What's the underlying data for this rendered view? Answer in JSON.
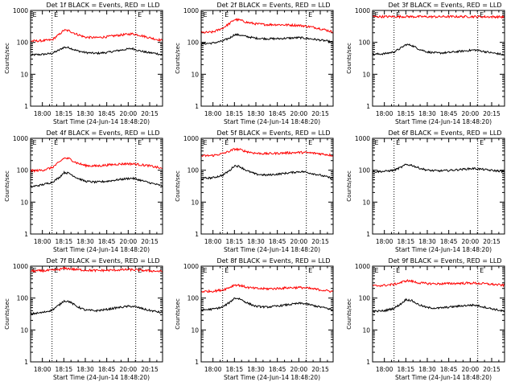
{
  "figure": {
    "background": "#ffffff",
    "axis_color": "#000000",
    "events_color": "#000000",
    "lld_color": "#ff0000"
  },
  "chart_data": [
    {
      "type": "line",
      "title": "Det 1f BLACK = Events, RED = LLD",
      "xlabel": "Start Time (24-Jun-14 18:48:20)",
      "ylabel": "Counts/sec",
      "yscale": "log",
      "ylim": [
        1,
        1000
      ],
      "y_ticks": [
        "1",
        "10",
        "100",
        "1000"
      ],
      "x_ticks": [
        "18:00",
        "18:15",
        "18:30",
        "18:45",
        "20:00",
        "20:15"
      ],
      "x_tick_positions": [
        0.0,
        1.0,
        2.0,
        3.0,
        4.0,
        5.0
      ],
      "xlim": [
        -0.55,
        5.6
      ],
      "e_markers": [
        0.45,
        4.35
      ],
      "grid": false,
      "series": [
        {
          "name": "Events",
          "color": "#000000",
          "x": [
            -0.55,
            0.0,
            0.45,
            0.8,
            1.0,
            1.25,
            1.6,
            2.0,
            2.5,
            3.0,
            3.5,
            4.0,
            4.2,
            4.5,
            4.9,
            5.3,
            5.6
          ],
          "y": [
            40,
            42,
            45,
            58,
            70,
            68,
            55,
            48,
            45,
            48,
            55,
            62,
            64,
            55,
            48,
            45,
            40
          ]
        },
        {
          "name": "LLD",
          "color": "#ff0000",
          "x": [
            -0.55,
            0.0,
            0.45,
            0.8,
            1.0,
            1.25,
            1.6,
            2.0,
            2.5,
            3.0,
            3.5,
            4.0,
            4.2,
            4.5,
            4.9,
            5.3,
            5.6
          ],
          "y": [
            110,
            112,
            120,
            180,
            240,
            230,
            180,
            145,
            140,
            150,
            165,
            180,
            185,
            170,
            145,
            125,
            115
          ]
        }
      ]
    },
    {
      "type": "line",
      "title": "Det 2f BLACK = Events, RED = LLD",
      "xlabel": "Start Time (24-Jun-14 18:48:20)",
      "ylabel": "Counts/sec",
      "yscale": "log",
      "ylim": [
        1,
        1000
      ],
      "y_ticks": [
        "1",
        "10",
        "100",
        "1000"
      ],
      "x_ticks": [
        "18:00",
        "18:15",
        "18:30",
        "18:45",
        "20:00",
        "20:15"
      ],
      "x_tick_positions": [
        0.0,
        1.0,
        2.0,
        3.0,
        4.0,
        5.0
      ],
      "xlim": [
        -0.55,
        5.6
      ],
      "e_markers": [
        0.45,
        4.35
      ],
      "grid": false,
      "series": [
        {
          "name": "Events",
          "color": "#000000",
          "x": [
            -0.55,
            0.0,
            0.45,
            0.8,
            1.0,
            1.25,
            1.6,
            2.0,
            2.5,
            3.0,
            3.5,
            4.0,
            4.2,
            4.5,
            4.9,
            5.3,
            5.6
          ],
          "y": [
            90,
            95,
            110,
            140,
            175,
            170,
            150,
            135,
            130,
            130,
            135,
            140,
            138,
            130,
            120,
            110,
            100
          ]
        },
        {
          "name": "LLD",
          "color": "#ff0000",
          "x": [
            -0.55,
            0.0,
            0.45,
            0.8,
            1.0,
            1.25,
            1.6,
            2.0,
            2.5,
            3.0,
            3.5,
            4.0,
            4.2,
            4.5,
            4.9,
            5.3,
            5.6
          ],
          "y": [
            200,
            210,
            280,
            400,
            520,
            500,
            420,
            380,
            360,
            360,
            350,
            340,
            330,
            310,
            280,
            240,
            210
          ]
        }
      ]
    },
    {
      "type": "line",
      "title": "Det 3f BLACK = Events, RED = LLD",
      "xlabel": "Start Time (24-Jun-14 18:48:20)",
      "ylabel": "Counts/sec",
      "yscale": "log",
      "ylim": [
        1,
        1000
      ],
      "y_ticks": [
        "1",
        "10",
        "100",
        "1000"
      ],
      "x_ticks": [
        "18:00",
        "18:15",
        "18:30",
        "18:45",
        "20:00",
        "20:15"
      ],
      "x_tick_positions": [
        0.0,
        1.0,
        2.0,
        3.0,
        4.0,
        5.0
      ],
      "xlim": [
        -0.55,
        5.6
      ],
      "e_markers": [
        0.45,
        4.35
      ],
      "grid": false,
      "series": [
        {
          "name": "Events",
          "color": "#000000",
          "x": [
            -0.55,
            0.0,
            0.45,
            0.8,
            1.0,
            1.25,
            1.6,
            2.0,
            2.5,
            3.0,
            3.5,
            4.0,
            4.2,
            4.5,
            4.9,
            5.3,
            5.6
          ],
          "y": [
            42,
            44,
            50,
            68,
            85,
            82,
            62,
            50,
            46,
            48,
            52,
            56,
            58,
            54,
            48,
            44,
            40
          ]
        },
        {
          "name": "LLD",
          "color": "#ff0000",
          "x": [
            -0.55,
            0.0,
            0.45,
            0.8,
            1.0,
            1.25,
            1.6,
            2.0,
            2.5,
            3.0,
            3.5,
            4.0,
            4.2,
            4.5,
            4.9,
            5.3,
            5.6
          ],
          "y": [
            640,
            640,
            640,
            640,
            645,
            640,
            640,
            635,
            635,
            640,
            640,
            640,
            640,
            635,
            630,
            630,
            625
          ]
        }
      ]
    },
    {
      "type": "line",
      "title": "Det 4f BLACK = Events, RED = LLD",
      "xlabel": "Start Time (24-Jun-14 18:48:20)",
      "ylabel": "Counts/sec",
      "yscale": "log",
      "ylim": [
        1,
        1000
      ],
      "y_ticks": [
        "1",
        "10",
        "100",
        "1000"
      ],
      "x_ticks": [
        "18:00",
        "18:15",
        "18:30",
        "18:45",
        "20:00",
        "20:15"
      ],
      "x_tick_positions": [
        0.0,
        1.0,
        2.0,
        3.0,
        4.0,
        5.0
      ],
      "xlim": [
        -0.55,
        5.6
      ],
      "e_markers": [
        0.45,
        4.35
      ],
      "grid": false,
      "series": [
        {
          "name": "Events",
          "color": "#000000",
          "x": [
            -0.55,
            0.0,
            0.45,
            0.8,
            1.0,
            1.25,
            1.6,
            2.0,
            2.5,
            3.0,
            3.5,
            4.0,
            4.2,
            4.5,
            4.9,
            5.3,
            5.6
          ],
          "y": [
            30,
            35,
            42,
            60,
            85,
            80,
            58,
            45,
            42,
            45,
            50,
            55,
            56,
            50,
            42,
            36,
            32
          ]
        },
        {
          "name": "LLD",
          "color": "#ff0000",
          "x": [
            -0.55,
            0.0,
            0.45,
            0.8,
            1.0,
            1.25,
            1.6,
            2.0,
            2.5,
            3.0,
            3.5,
            4.0,
            4.2,
            4.5,
            4.9,
            5.3,
            5.6
          ],
          "y": [
            95,
            100,
            120,
            180,
            240,
            230,
            170,
            140,
            135,
            145,
            155,
            160,
            158,
            150,
            140,
            125,
            110
          ]
        }
      ]
    },
    {
      "type": "line",
      "title": "Det 5f BLACK = Events, RED = LLD",
      "xlabel": "Start Time (24-Jun-14 18:48:20)",
      "ylabel": "Counts/sec",
      "yscale": "log",
      "ylim": [
        1,
        1000
      ],
      "y_ticks": [
        "1",
        "10",
        "100",
        "1000"
      ],
      "x_ticks": [
        "18:00",
        "18:15",
        "18:30",
        "18:45",
        "20:00",
        "20:15"
      ],
      "x_tick_positions": [
        0.0,
        1.0,
        2.0,
        3.0,
        4.0,
        5.0
      ],
      "xlim": [
        -0.55,
        5.6
      ],
      "e_markers": [
        0.45,
        4.35
      ],
      "grid": false,
      "series": [
        {
          "name": "Events",
          "color": "#000000",
          "x": [
            -0.55,
            0.0,
            0.45,
            0.8,
            1.0,
            1.25,
            1.6,
            2.0,
            2.5,
            3.0,
            3.5,
            4.0,
            4.2,
            4.5,
            4.9,
            5.3,
            5.6
          ],
          "y": [
            55,
            58,
            70,
            100,
            140,
            130,
            95,
            75,
            70,
            75,
            82,
            90,
            90,
            82,
            72,
            62,
            55
          ]
        },
        {
          "name": "LLD",
          "color": "#ff0000",
          "x": [
            -0.55,
            0.0,
            0.45,
            0.8,
            1.0,
            1.25,
            1.6,
            2.0,
            2.5,
            3.0,
            3.5,
            4.0,
            4.2,
            4.5,
            4.9,
            5.3,
            5.6
          ],
          "y": [
            280,
            290,
            330,
            400,
            460,
            440,
            380,
            340,
            330,
            340,
            350,
            360,
            360,
            350,
            335,
            310,
            290
          ]
        }
      ]
    },
    {
      "type": "line",
      "title": "Det 6f BLACK = Events, RED = LLD",
      "xlabel": "Start Time (24-Jun-14 18:48:20)",
      "ylabel": "Counts/sec",
      "yscale": "log",
      "ylim": [
        1,
        1000
      ],
      "y_ticks": [
        "1",
        "10",
        "100",
        "1000"
      ],
      "x_ticks": [
        "18:00",
        "18:15",
        "18:30",
        "18:45",
        "20:00",
        "20:15"
      ],
      "x_tick_positions": [
        0.0,
        1.0,
        2.0,
        3.0,
        4.0,
        5.0
      ],
      "xlim": [
        -0.55,
        5.6
      ],
      "e_markers": [
        0.45,
        4.35
      ],
      "grid": false,
      "series": [
        {
          "name": "Events",
          "color": "#000000",
          "x": [
            -0.55,
            0.0,
            0.45,
            0.8,
            1.0,
            1.25,
            1.6,
            2.0,
            2.5,
            3.0,
            3.5,
            4.0,
            4.2,
            4.5,
            4.9,
            5.3,
            5.6
          ],
          "y": [
            90,
            92,
            100,
            125,
            150,
            145,
            118,
            100,
            95,
            98,
            105,
            112,
            113,
            108,
            100,
            95,
            90
          ]
        }
      ]
    },
    {
      "type": "line",
      "title": "Det 7f BLACK = Events, RED = LLD",
      "xlabel": "Start Time (24-Jun-14 18:48:20)",
      "ylabel": "Counts/sec",
      "yscale": "log",
      "ylim": [
        1,
        1000
      ],
      "y_ticks": [
        "1",
        "10",
        "100",
        "1000"
      ],
      "x_ticks": [
        "18:00",
        "18:15",
        "18:30",
        "18:45",
        "20:00",
        "20:15"
      ],
      "x_tick_positions": [
        0.0,
        1.0,
        2.0,
        3.0,
        4.0,
        5.0
      ],
      "xlim": [
        -0.55,
        5.6
      ],
      "e_markers": [
        0.45,
        4.35
      ],
      "grid": false,
      "series": [
        {
          "name": "Events",
          "color": "#000000",
          "x": [
            -0.55,
            0.0,
            0.45,
            0.8,
            1.0,
            1.25,
            1.6,
            2.0,
            2.5,
            3.0,
            3.5,
            4.0,
            4.2,
            4.5,
            4.9,
            5.3,
            5.6
          ],
          "y": [
            32,
            35,
            42,
            62,
            82,
            78,
            55,
            42,
            40,
            44,
            50,
            55,
            55,
            50,
            42,
            38,
            34
          ]
        },
        {
          "name": "LLD",
          "color": "#ff0000",
          "x": [
            -0.55,
            0.0,
            0.45,
            0.8,
            1.0,
            1.25,
            1.6,
            2.0,
            2.5,
            3.0,
            3.5,
            4.0,
            4.2,
            4.5,
            4.9,
            5.3,
            5.6
          ],
          "y": [
            700,
            720,
            740,
            790,
            850,
            830,
            780,
            750,
            730,
            740,
            760,
            780,
            770,
            750,
            720,
            700,
            680
          ]
        }
      ]
    },
    {
      "type": "line",
      "title": "Det 8f BLACK = Events, RED = LLD",
      "xlabel": "Start Time (24-Jun-14 18:48:20)",
      "ylabel": "Counts/sec",
      "yscale": "log",
      "ylim": [
        1,
        1000
      ],
      "y_ticks": [
        "1",
        "10",
        "100",
        "1000"
      ],
      "x_ticks": [
        "18:00",
        "18:15",
        "18:30",
        "18:45",
        "20:00",
        "20:15"
      ],
      "x_tick_positions": [
        0.0,
        1.0,
        2.0,
        3.0,
        4.0,
        5.0
      ],
      "xlim": [
        -0.55,
        5.6
      ],
      "e_markers": [
        0.45,
        4.35
      ],
      "grid": false,
      "series": [
        {
          "name": "Events",
          "color": "#000000",
          "x": [
            -0.55,
            0.0,
            0.45,
            0.8,
            1.0,
            1.25,
            1.6,
            2.0,
            2.5,
            3.0,
            3.5,
            4.0,
            4.2,
            4.5,
            4.9,
            5.3,
            5.6
          ],
          "y": [
            42,
            45,
            52,
            75,
            100,
            95,
            70,
            55,
            52,
            56,
            62,
            68,
            68,
            62,
            54,
            48,
            42
          ]
        },
        {
          "name": "LLD",
          "color": "#ff0000",
          "x": [
            -0.55,
            0.0,
            0.45,
            0.8,
            1.0,
            1.25,
            1.6,
            2.0,
            2.5,
            3.0,
            3.5,
            4.0,
            4.2,
            4.5,
            4.9,
            5.3,
            5.6
          ],
          "y": [
            160,
            165,
            180,
            220,
            260,
            250,
            215,
            200,
            195,
            200,
            210,
            215,
            212,
            200,
            185,
            170,
            160
          ]
        }
      ]
    },
    {
      "type": "line",
      "title": "Det 9f BLACK = Events, RED = LLD",
      "xlabel": "Start Time (24-Jun-14 18:48:20)",
      "ylabel": "Counts/sec",
      "yscale": "log",
      "ylim": [
        1,
        1000
      ],
      "y_ticks": [
        "1",
        "10",
        "100",
        "1000"
      ],
      "x_ticks": [
        "18:00",
        "18:15",
        "18:30",
        "18:45",
        "20:00",
        "20:15"
      ],
      "x_tick_positions": [
        0.0,
        1.0,
        2.0,
        3.0,
        4.0,
        5.0
      ],
      "xlim": [
        -0.55,
        5.6
      ],
      "e_markers": [
        0.45,
        4.35
      ],
      "grid": false,
      "series": [
        {
          "name": "Events",
          "color": "#000000",
          "x": [
            -0.55,
            0.0,
            0.45,
            0.8,
            1.0,
            1.25,
            1.6,
            2.0,
            2.5,
            3.0,
            3.5,
            4.0,
            4.2,
            4.5,
            4.9,
            5.3,
            5.6
          ],
          "y": [
            38,
            40,
            48,
            68,
            90,
            85,
            62,
            50,
            48,
            52,
            56,
            60,
            60,
            55,
            48,
            42,
            38
          ]
        },
        {
          "name": "LLD",
          "color": "#ff0000",
          "x": [
            -0.55,
            0.0,
            0.45,
            0.8,
            1.0,
            1.25,
            1.6,
            2.0,
            2.5,
            3.0,
            3.5,
            4.0,
            4.2,
            4.5,
            4.9,
            5.3,
            5.6
          ],
          "y": [
            240,
            250,
            270,
            310,
            350,
            340,
            300,
            285,
            280,
            285,
            290,
            295,
            293,
            285,
            275,
            260,
            250
          ]
        }
      ]
    }
  ]
}
